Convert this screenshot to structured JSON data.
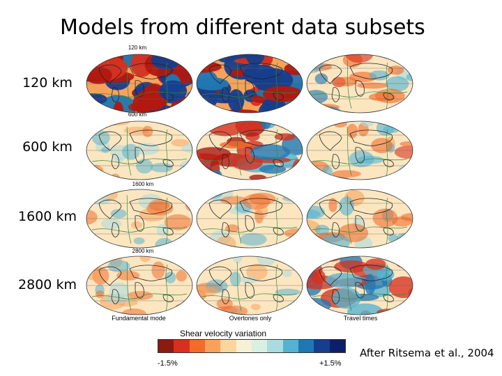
{
  "title": "Models from different data subsets",
  "rows": [
    {
      "label": "120 km",
      "tag": "120 km"
    },
    {
      "label": "600 km",
      "tag": "600 km"
    },
    {
      "label": "1600 km",
      "tag": "1600 km"
    },
    {
      "label": "2800 km",
      "tag": "2800 km"
    }
  ],
  "columns": [
    "Fundamental mode",
    "Overtones only",
    "Travel times"
  ],
  "scale": {
    "title": "Shear velocity variation",
    "min_label": "-1.5%",
    "max_label": "+1.5%",
    "colors": [
      "#8b1a10",
      "#d7301f",
      "#f26b2a",
      "#f7a25a",
      "#fbd69c",
      "#f6f1d6",
      "#d8efe2",
      "#a9dbe0",
      "#54b2d2",
      "#1f78b4",
      "#163e8c",
      "#0d1f6b"
    ]
  },
  "credit": "After Ritsema et al., 2004"
}
